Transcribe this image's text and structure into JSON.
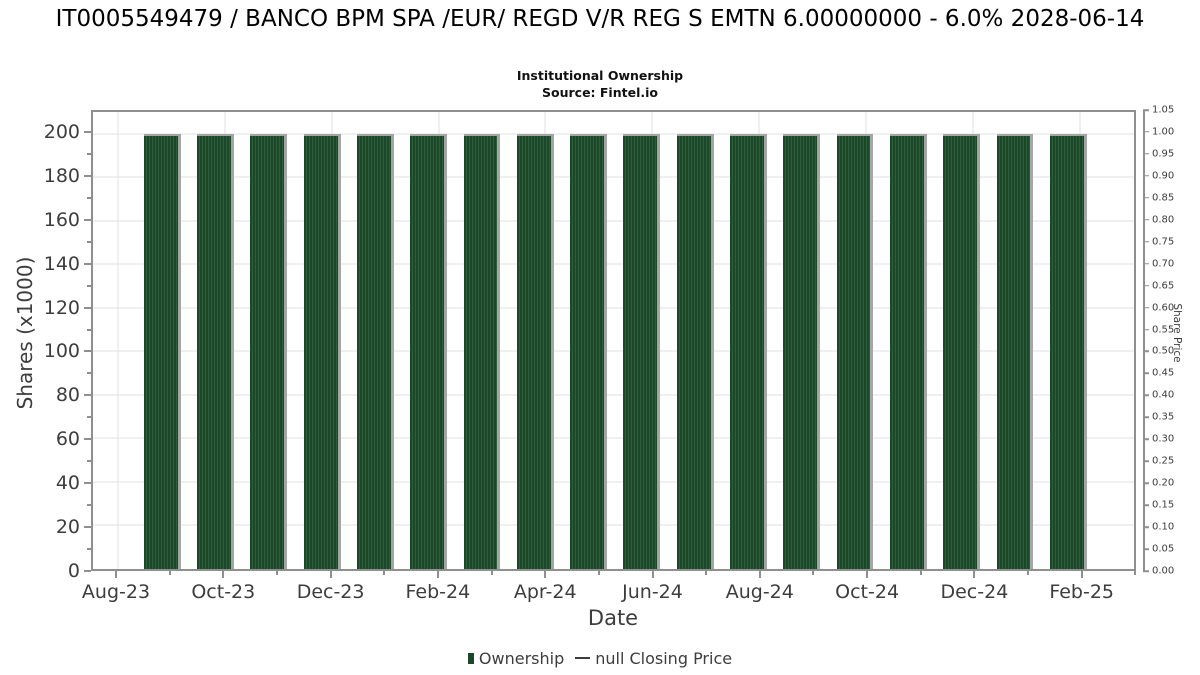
{
  "header": {
    "title": "IT0005549479 / BANCO BPM SPA /EUR/ REGD V/R REG S EMTN 6.00000000 - 6.0% 2028-06-14",
    "subtitle": "Institutional Ownership",
    "source": "Source: Fintel.io"
  },
  "chart_data": {
    "type": "bar",
    "title": "IT0005549479 / BANCO BPM SPA /EUR/ REGD V/R REG S EMTN 6.00000000 - 6.0% 2028-06-14",
    "subtitle": "Institutional Ownership",
    "source": "Source: Fintel.io",
    "categories": [
      "Sep-23",
      "Oct-23",
      "Nov-23",
      "Dec-23",
      "Jan-24",
      "Feb-24",
      "Mar-24",
      "Apr-24",
      "May-24",
      "Jun-24",
      "Jul-24",
      "Aug-24",
      "Sep-24",
      "Oct-24",
      "Nov-24",
      "Dec-24",
      "Jan-25",
      "Feb-25"
    ],
    "series": [
      {
        "name": "Ownership",
        "type": "bar",
        "values": [
          200,
          200,
          200,
          200,
          200,
          200,
          200,
          200,
          200,
          200,
          200,
          200,
          200,
          200,
          200,
          200,
          200,
          200
        ]
      },
      {
        "name": "null Closing Price",
        "type": "line",
        "values": []
      }
    ],
    "xlabel": "Date",
    "ylabel": "Shares (x1000)",
    "y2label": "Share Price",
    "ylim": [
      0,
      210
    ],
    "y2lim": [
      0,
      1.05
    ],
    "yticks": [
      0,
      20,
      40,
      60,
      80,
      100,
      120,
      140,
      160,
      180,
      200
    ],
    "y2ticks": [
      "0.00",
      "0.05",
      "0.10",
      "0.15",
      "0.20",
      "0.25",
      "0.30",
      "0.35",
      "0.40",
      "0.45",
      "0.50",
      "0.55",
      "0.60",
      "0.65",
      "0.70",
      "0.75",
      "0.80",
      "0.85",
      "0.90",
      "0.95",
      "1.00",
      "1.05"
    ],
    "xticks": [
      "Aug-23",
      "Oct-23",
      "Dec-23",
      "Feb-24",
      "Apr-24",
      "Jun-24",
      "Aug-24",
      "Oct-24",
      "Dec-24",
      "Feb-25"
    ],
    "grid": true,
    "legend_position": "bottom"
  },
  "colors": {
    "bar": "#1d4729",
    "bar_stripe": "#2e5f3c",
    "bar_shadow": "#a5a5a5",
    "grid": "#e2e2e2",
    "axis": "#8f8f8f",
    "tick_text": "#3d3d3d",
    "title_text": "#000000",
    "legend_line": "#3d3d3d"
  }
}
